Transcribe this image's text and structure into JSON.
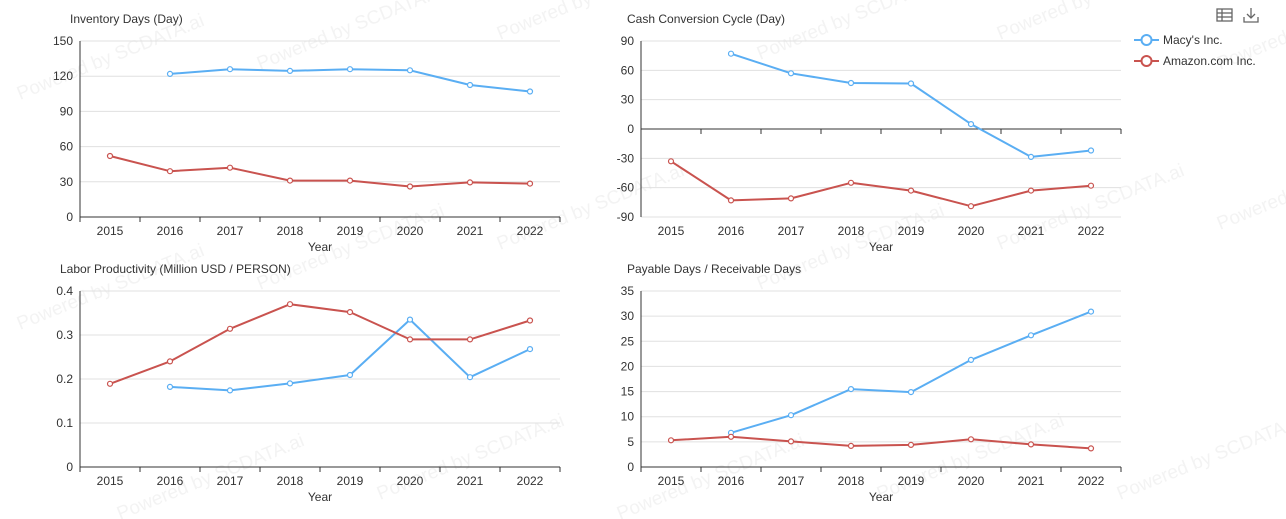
{
  "toolbar": {
    "data_view_icon": "table-icon",
    "download_icon": "download-icon"
  },
  "watermark": "Powered by SCDATA.ai",
  "legend": [
    {
      "name": "Macy's Inc.",
      "color": "#5aaef3"
    },
    {
      "name": "Amazon.com Inc.",
      "color": "#c9534f"
    }
  ],
  "chart_data": [
    {
      "type": "line",
      "title": "Inventory Days (Day)",
      "xlabel": "Year",
      "categories": [
        "2015",
        "2016",
        "2017",
        "2018",
        "2019",
        "2020",
        "2021",
        "2022"
      ],
      "ylim": [
        0,
        150
      ],
      "yticks": [
        0,
        30,
        60,
        90,
        120,
        150
      ],
      "series": [
        {
          "name": "Macy's Inc.",
          "values": [
            null,
            122,
            126,
            124.5,
            126,
            125,
            112.5,
            107
          ]
        },
        {
          "name": "Amazon.com Inc.",
          "values": [
            52,
            39,
            42,
            31,
            31,
            26,
            29.5,
            28.5
          ]
        }
      ]
    },
    {
      "type": "line",
      "title": "Cash Conversion Cycle (Day)",
      "xlabel": "Year",
      "categories": [
        "2015",
        "2016",
        "2017",
        "2018",
        "2019",
        "2020",
        "2021",
        "2022"
      ],
      "ylim": [
        -90,
        90
      ],
      "yticks": [
        -90,
        -60,
        -30,
        0,
        30,
        60,
        90
      ],
      "series": [
        {
          "name": "Macy's Inc.",
          "values": [
            null,
            77,
            57,
            47,
            46.5,
            5,
            -28.5,
            -22
          ]
        },
        {
          "name": "Amazon.com Inc.",
          "values": [
            -33,
            -73,
            -71,
            -55,
            -63,
            -79,
            -63,
            -58
          ]
        }
      ]
    },
    {
      "type": "line",
      "title": "Labor Productivity (Million USD / PERSON)",
      "xlabel": "Year",
      "categories": [
        "2015",
        "2016",
        "2017",
        "2018",
        "2019",
        "2020",
        "2021",
        "2022"
      ],
      "ylim": [
        0,
        0.4
      ],
      "yticks": [
        0,
        0.1,
        0.2,
        0.3,
        0.4
      ],
      "series": [
        {
          "name": "Macy's Inc.",
          "values": [
            null,
            0.182,
            0.174,
            0.19,
            0.209,
            0.335,
            0.204,
            0.268
          ]
        },
        {
          "name": "Amazon.com Inc.",
          "values": [
            0.189,
            0.24,
            0.314,
            0.37,
            0.352,
            0.29,
            0.29,
            0.333
          ]
        }
      ]
    },
    {
      "type": "line",
      "title": "Payable Days / Receivable Days",
      "xlabel": "Year",
      "categories": [
        "2015",
        "2016",
        "2017",
        "2018",
        "2019",
        "2020",
        "2021",
        "2022"
      ],
      "ylim": [
        0,
        35
      ],
      "yticks": [
        0,
        5,
        10,
        15,
        20,
        25,
        30,
        35
      ],
      "series": [
        {
          "name": "Macy's Inc.",
          "values": [
            null,
            6.8,
            10.3,
            15.5,
            14.9,
            21.3,
            26.2,
            30.9
          ]
        },
        {
          "name": "Amazon.com Inc.",
          "values": [
            5.3,
            6,
            5.1,
            4.2,
            4.4,
            5.5,
            4.5,
            3.7
          ]
        }
      ]
    }
  ]
}
